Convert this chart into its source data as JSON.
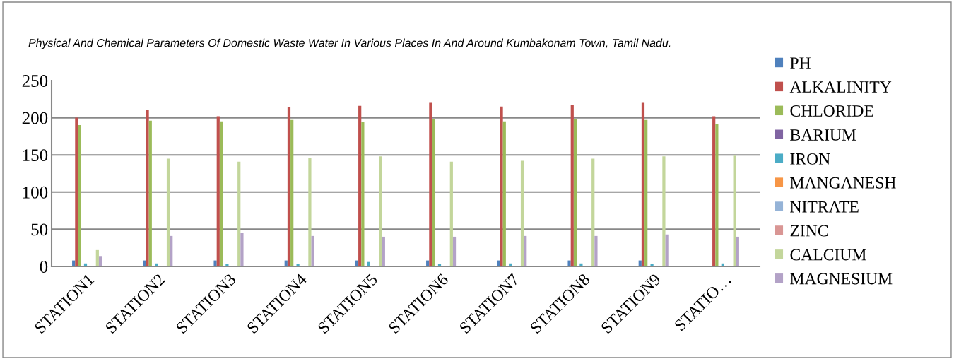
{
  "chart_data": {
    "type": "bar",
    "title": "Physical And Chemical Parameters Of Domestic Waste Water In Various Places In And Around Kumbakonam Town, Tamil Nadu.",
    "categories": [
      "STATION1",
      "STATION2",
      "STATION3",
      "STATION4",
      "STATION5",
      "STATION6",
      "STATION7",
      "STATION8",
      "STATION9",
      "STATIO…"
    ],
    "series": [
      {
        "name": "PH",
        "color": "#4f81bd",
        "values": [
          8,
          8,
          8,
          8,
          8,
          8,
          8,
          8,
          8,
          null
        ]
      },
      {
        "name": "ALKALINITY",
        "color": "#c0504d",
        "values": [
          200,
          211,
          202,
          214,
          216,
          220,
          215,
          217,
          220,
          202
        ]
      },
      {
        "name": "CHLORIDE",
        "color": "#9bbb59",
        "values": [
          190,
          196,
          195,
          197,
          194,
          198,
          195,
          198,
          197,
          192
        ]
      },
      {
        "name": "BARIUM",
        "color": "#8064a2",
        "values": [
          0,
          0,
          0,
          0,
          0,
          0,
          0,
          0,
          0,
          0
        ]
      },
      {
        "name": "IRON",
        "color": "#4bacc6",
        "values": [
          4,
          4,
          3,
          3,
          6,
          3,
          4,
          4,
          3,
          4
        ]
      },
      {
        "name": "MANGANESH",
        "color": "#f79646",
        "values": [
          0,
          0,
          0,
          0,
          0,
          0,
          0,
          0,
          0,
          0
        ]
      },
      {
        "name": "NITRATE",
        "color": "#95b3d7",
        "values": [
          0,
          0,
          0,
          0,
          0,
          0,
          0,
          0,
          0,
          0
        ]
      },
      {
        "name": "ZINC",
        "color": "#d99694",
        "values": [
          0,
          0,
          0,
          0,
          0,
          0,
          0,
          0,
          0,
          0
        ]
      },
      {
        "name": "CALCIUM",
        "color": "#c3d69b",
        "values": [
          22,
          145,
          141,
          146,
          148,
          141,
          142,
          145,
          148,
          149
        ]
      },
      {
        "name": "MAGNESIUM",
        "color": "#b3a2c7",
        "values": [
          14,
          41,
          45,
          41,
          40,
          40,
          41,
          41,
          43,
          40
        ]
      }
    ],
    "ylim": [
      0,
      250
    ],
    "yticks": [
      0,
      50,
      100,
      150,
      200,
      250
    ],
    "grid": "y",
    "legend": "right"
  }
}
